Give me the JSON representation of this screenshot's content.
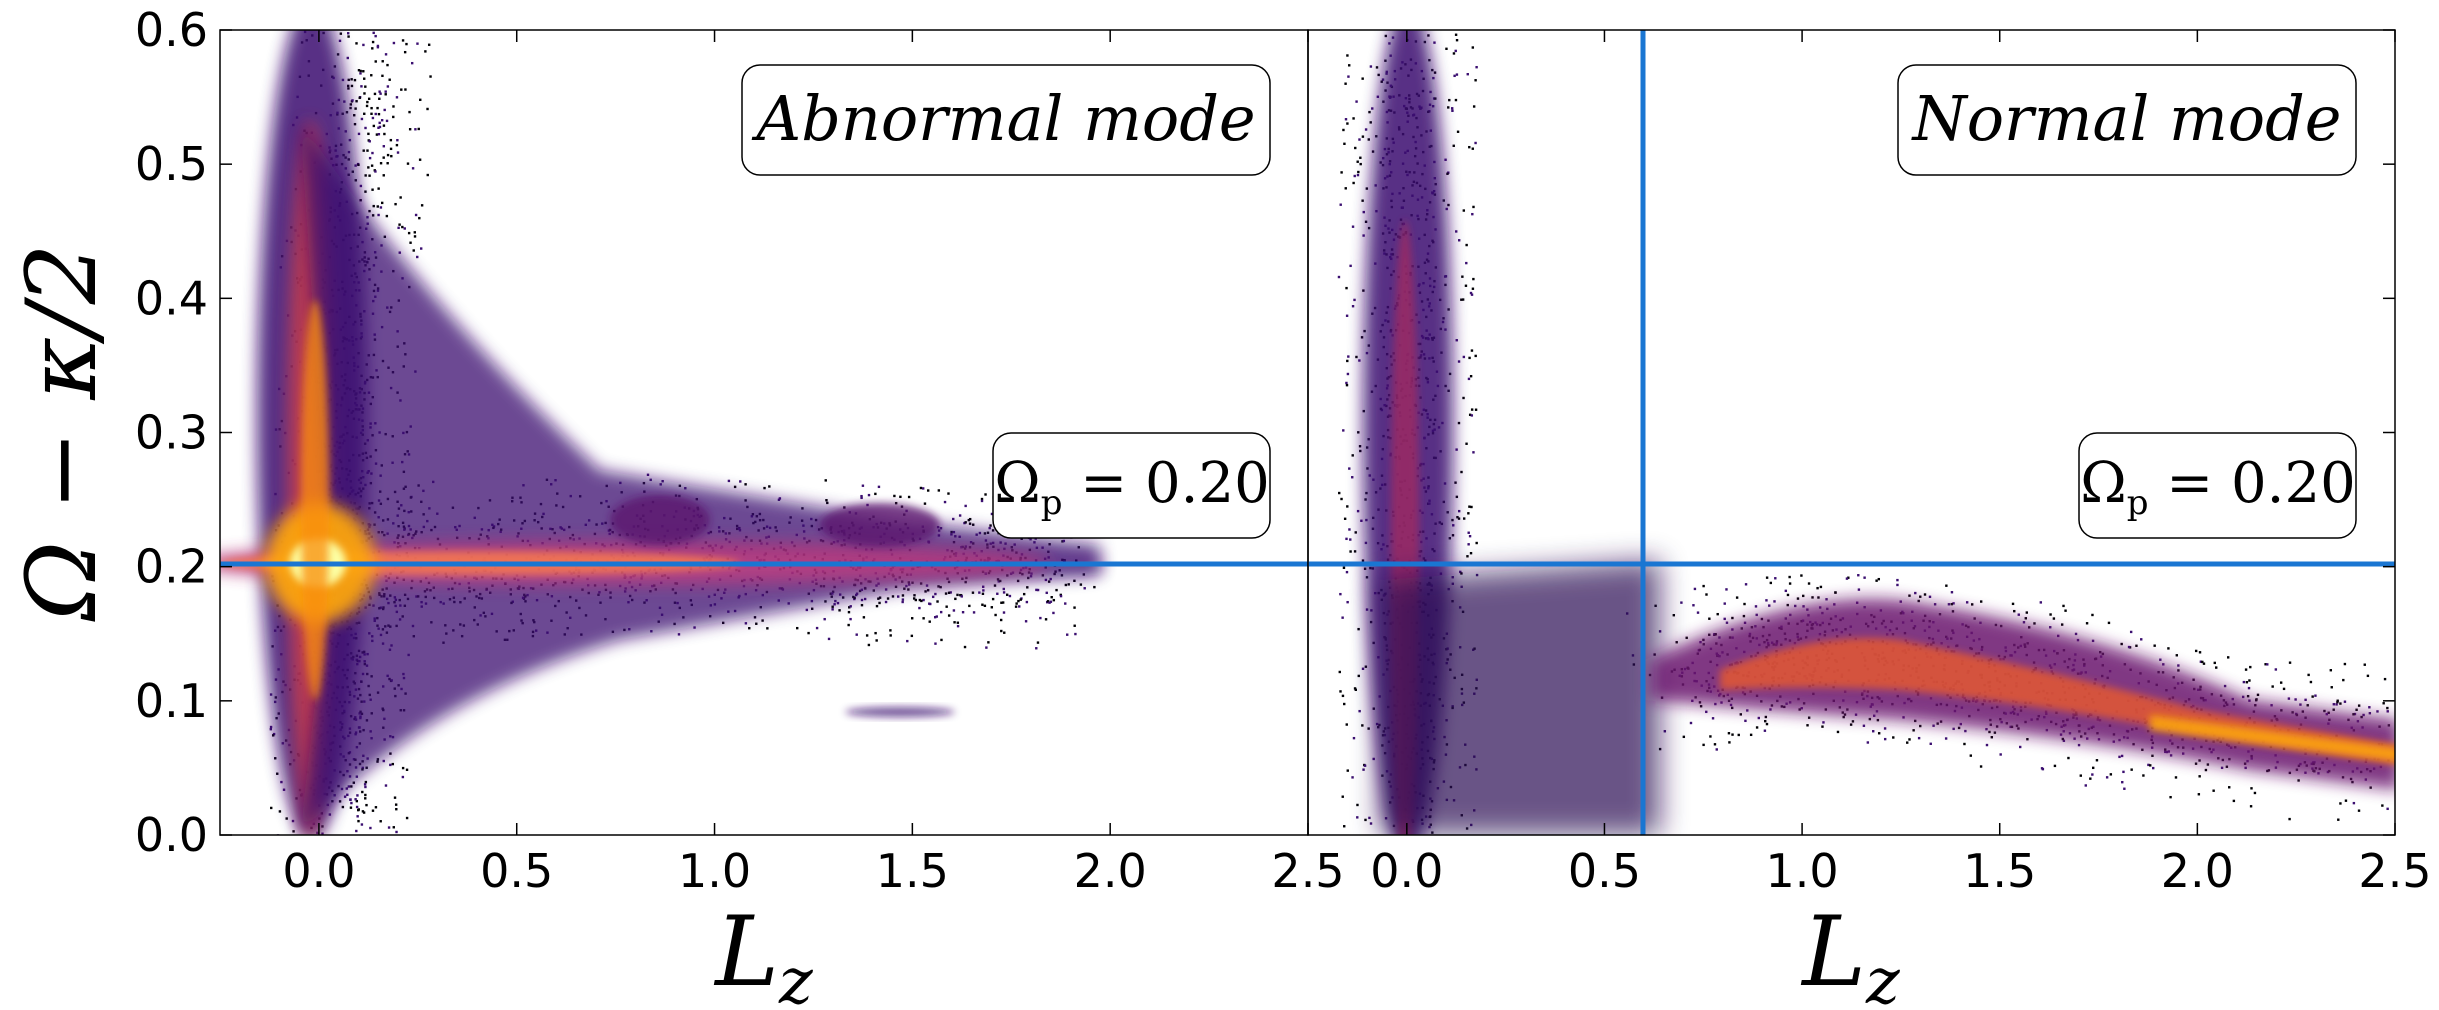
{
  "chart_data": [
    {
      "type": "scatter",
      "panel": "left",
      "title": "",
      "xlabel": "L",
      "xlabel_sub": "z",
      "ylabel": "Ω − κ/2",
      "xlim": [
        -0.25,
        2.5
      ],
      "ylim": [
        0.0,
        0.6
      ],
      "xticks": [
        "0.0",
        "0.5",
        "1.0",
        "1.5",
        "2.0",
        "2.5"
      ],
      "yticks": [
        "0.0",
        "0.1",
        "0.2",
        "0.3",
        "0.4",
        "0.5",
        "0.6"
      ],
      "colormap": "inferno (density)",
      "annotation_mode": "Abnormal mode",
      "annotation_omega": "Ω",
      "annotation_omega_sub": "p",
      "annotation_omega_value": " = 0.20",
      "hline_y": 0.2,
      "density_ridges": [
        {
          "name": "",
          "x": [
            0.05,
            0.05,
            0.05,
            0.06,
            0.08,
            0.12
          ],
          "y": [
            0.0,
            0.1,
            0.2,
            0.3,
            0.45,
            0.6
          ]
        },
        {
          "name": "",
          "x": [
            0.1,
            0.5,
            0.9,
            1.3,
            1.6,
            1.85
          ],
          "y": [
            0.2,
            0.205,
            0.21,
            0.205,
            0.2,
            0.2
          ]
        }
      ],
      "blobs": [
        {
          "x": 0.85,
          "y": 0.23
        },
        {
          "x": 1.4,
          "y": 0.225
        },
        {
          "x": 1.55,
          "y": 0.092
        }
      ],
      "line_color": "#1a76d2"
    },
    {
      "type": "scatter",
      "panel": "right",
      "title": "",
      "xlabel": "L",
      "xlabel_sub": "z",
      "xlim": [
        -0.25,
        2.5
      ],
      "ylim": [
        0.0,
        0.6
      ],
      "xticks": [
        "0.0",
        "0.5",
        "1.0",
        "1.5",
        "2.0",
        "2.5"
      ],
      "colormap": "inferno (density)",
      "annotation_mode": "Normal mode",
      "annotation_omega": "Ω",
      "annotation_omega_sub": "p",
      "annotation_omega_value": " = 0.20",
      "hline_y": 0.2,
      "vline_x": 0.6,
      "density_ridges": [
        {
          "name": "",
          "x": [
            0.0,
            0.0,
            0.0,
            0.0,
            0.0
          ],
          "y": [
            0.0,
            0.15,
            0.3,
            0.45,
            0.6
          ]
        },
        {
          "name": "",
          "x": [
            0.7,
            1.0,
            1.3,
            1.6,
            2.0,
            2.5
          ],
          "y": [
            0.12,
            0.14,
            0.13,
            0.11,
            0.085,
            0.065
          ]
        }
      ],
      "line_color": "#1a76d2"
    }
  ]
}
